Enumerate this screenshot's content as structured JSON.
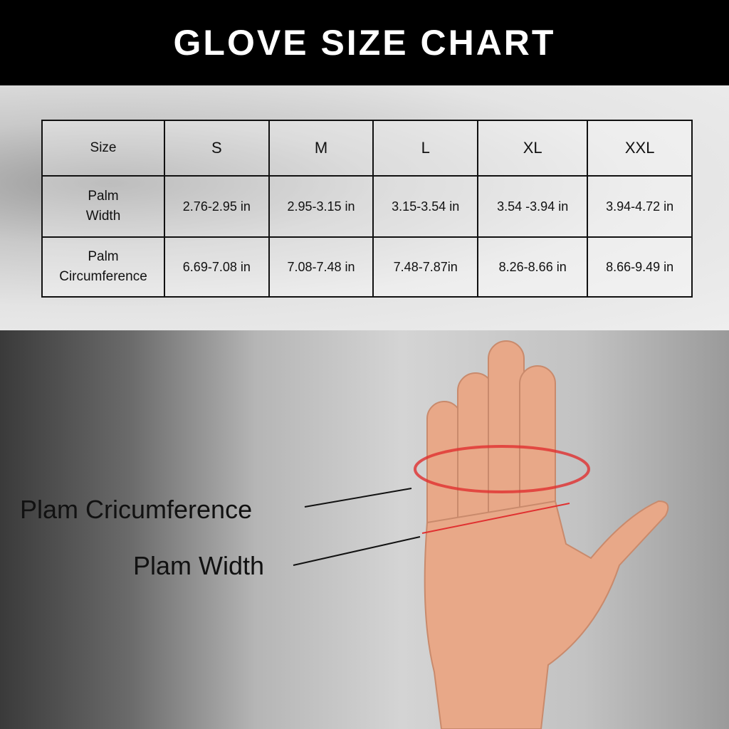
{
  "title": "GLOVE SIZE CHART",
  "table": {
    "header": [
      "Size",
      "S",
      "M",
      "L",
      "XL",
      "XXL"
    ],
    "rows": [
      [
        "Palm Width",
        "2.76-2.95 in",
        "2.95-3.15 in",
        "3.15-3.54 in",
        "3.54 -3.94 in",
        "3.94-4.72 in"
      ],
      [
        "Palm Circumference",
        "6.69-7.08 in",
        "7.08-7.48 in",
        "7.48-7.87in",
        "8.26-8.66 in",
        "8.66-9.49  in"
      ]
    ]
  },
  "annotations": {
    "circumference": "Plam Cricumference",
    "width": "Plam Width"
  },
  "colors": {
    "header_bg": "#000000",
    "measure_line": "#e03030"
  }
}
